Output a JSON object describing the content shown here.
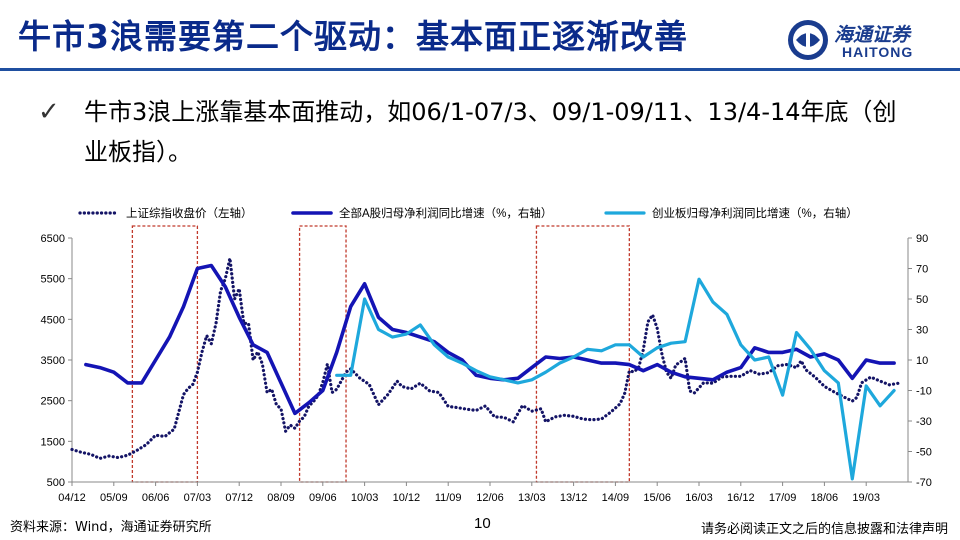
{
  "header": {
    "title": "牛市3浪需要第二个驱动：基本面正逐渐改善",
    "logo_cn": "海通证券",
    "logo_en": "HAITONG"
  },
  "bullet": {
    "icon": "check-icon",
    "text": "牛市3浪上涨靠基本面推动，如06/1-07/3、09/1-09/11、13/4-14年底（创业板指）。"
  },
  "footer": {
    "source": "资料来源：Wind，海通证券研究所",
    "page": "10",
    "disclaimer": "请务必阅读正文之后的信息披露和法律声明"
  },
  "colors": {
    "title": "#0a2a8a",
    "series_dark": "#1414b4",
    "series_light": "#1ea8dc",
    "index_dots": "#141466",
    "highlight_box": "#c0392b"
  },
  "chart_data": {
    "type": "line",
    "x_ticks": [
      "04/12",
      "05/09",
      "06/06",
      "07/03",
      "07/12",
      "08/09",
      "09/06",
      "10/03",
      "10/12",
      "11/09",
      "12/06",
      "13/03",
      "13/12",
      "14/09",
      "15/06",
      "16/03",
      "16/12",
      "17/09",
      "18/06",
      "19/03"
    ],
    "x_range": [
      "2004-12",
      "2019-12"
    ],
    "y_left": {
      "ticks": [
        500,
        1500,
        2500,
        3500,
        4500,
        5500,
        6500
      ],
      "ylim": [
        500,
        6500
      ]
    },
    "y_right": {
      "ticks": [
        -70,
        -50,
        -30,
        -10,
        10,
        30,
        50,
        70,
        90
      ],
      "ylim": [
        -70,
        90
      ]
    },
    "series": [
      {
        "name": "上证综指收盘价（左轴）",
        "axis": "left",
        "style": "dotted",
        "points": [
          [
            "2004-12",
            1300
          ],
          [
            "2005-02",
            1230
          ],
          [
            "2005-04",
            1180
          ],
          [
            "2005-06",
            1080
          ],
          [
            "2005-08",
            1140
          ],
          [
            "2005-10",
            1100
          ],
          [
            "2005-12",
            1160
          ],
          [
            "2006-02",
            1280
          ],
          [
            "2006-04",
            1420
          ],
          [
            "2006-06",
            1650
          ],
          [
            "2006-08",
            1620
          ],
          [
            "2006-10",
            1800
          ],
          [
            "2006-12",
            2650
          ],
          [
            "2007-01",
            2800
          ],
          [
            "2007-02",
            2900
          ],
          [
            "2007-03",
            3200
          ],
          [
            "2007-04",
            3700
          ],
          [
            "2007-05",
            4100
          ],
          [
            "2007-06",
            3900
          ],
          [
            "2007-07",
            4400
          ],
          [
            "2007-08",
            5200
          ],
          [
            "2007-09",
            5500
          ],
          [
            "2007-10",
            6000
          ],
          [
            "2007-11",
            5000
          ],
          [
            "2007-12",
            5250
          ],
          [
            "2008-01",
            4400
          ],
          [
            "2008-02",
            4400
          ],
          [
            "2008-03",
            3500
          ],
          [
            "2008-04",
            3700
          ],
          [
            "2008-05",
            3400
          ],
          [
            "2008-06",
            2700
          ],
          [
            "2008-07",
            2780
          ],
          [
            "2008-08",
            2400
          ],
          [
            "2008-09",
            2300
          ],
          [
            "2008-10",
            1750
          ],
          [
            "2008-11",
            1900
          ],
          [
            "2008-12",
            1820
          ],
          [
            "2009-01",
            2000
          ],
          [
            "2009-02",
            2100
          ],
          [
            "2009-03",
            2370
          ],
          [
            "2009-04",
            2480
          ],
          [
            "2009-05",
            2630
          ],
          [
            "2009-06",
            2950
          ],
          [
            "2009-07",
            3400
          ],
          [
            "2009-08",
            2700
          ],
          [
            "2009-09",
            2780
          ],
          [
            "2009-10",
            2990
          ],
          [
            "2009-11",
            3200
          ],
          [
            "2009-12",
            3280
          ],
          [
            "2010-02",
            3050
          ],
          [
            "2010-04",
            2900
          ],
          [
            "2010-06",
            2400
          ],
          [
            "2010-08",
            2650
          ],
          [
            "2010-10",
            2980
          ],
          [
            "2010-11",
            2850
          ],
          [
            "2011-01",
            2790
          ],
          [
            "2011-03",
            2930
          ],
          [
            "2011-05",
            2740
          ],
          [
            "2011-07",
            2700
          ],
          [
            "2011-09",
            2360
          ],
          [
            "2011-11",
            2330
          ],
          [
            "2012-01",
            2290
          ],
          [
            "2012-03",
            2260
          ],
          [
            "2012-05",
            2370
          ],
          [
            "2012-07",
            2100
          ],
          [
            "2012-09",
            2090
          ],
          [
            "2012-11",
            1980
          ],
          [
            "2013-01",
            2380
          ],
          [
            "2013-03",
            2240
          ],
          [
            "2013-05",
            2300
          ],
          [
            "2013-06",
            1980
          ],
          [
            "2013-08",
            2100
          ],
          [
            "2013-10",
            2140
          ],
          [
            "2013-12",
            2115
          ],
          [
            "2014-02",
            2050
          ],
          [
            "2014-04",
            2030
          ],
          [
            "2014-06",
            2050
          ],
          [
            "2014-08",
            2220
          ],
          [
            "2014-10",
            2420
          ],
          [
            "2014-11",
            2680
          ],
          [
            "2014-12",
            3230
          ],
          [
            "2015-01",
            3210
          ],
          [
            "2015-02",
            3310
          ],
          [
            "2015-03",
            3750
          ],
          [
            "2015-04",
            4440
          ],
          [
            "2015-05",
            4610
          ],
          [
            "2015-06",
            4280
          ],
          [
            "2015-07",
            3660
          ],
          [
            "2015-08",
            3200
          ],
          [
            "2015-09",
            3050
          ],
          [
            "2015-10",
            3380
          ],
          [
            "2015-11",
            3450
          ],
          [
            "2015-12",
            3540
          ],
          [
            "2016-01",
            2740
          ],
          [
            "2016-02",
            2690
          ],
          [
            "2016-04",
            2940
          ],
          [
            "2016-06",
            2930
          ],
          [
            "2016-08",
            3085
          ],
          [
            "2016-10",
            3100
          ],
          [
            "2016-12",
            3100
          ],
          [
            "2017-02",
            3240
          ],
          [
            "2017-04",
            3150
          ],
          [
            "2017-06",
            3190
          ],
          [
            "2017-08",
            3360
          ],
          [
            "2017-10",
            3390
          ],
          [
            "2017-12",
            3310
          ],
          [
            "2018-01",
            3480
          ],
          [
            "2018-02",
            3260
          ],
          [
            "2018-04",
            3080
          ],
          [
            "2018-06",
            2850
          ],
          [
            "2018-08",
            2720
          ],
          [
            "2018-10",
            2600
          ],
          [
            "2018-12",
            2490
          ],
          [
            "2019-01",
            2580
          ],
          [
            "2019-02",
            2940
          ],
          [
            "2019-04",
            3080
          ],
          [
            "2019-06",
            2980
          ],
          [
            "2019-08",
            2890
          ],
          [
            "2019-10",
            2930
          ]
        ]
      },
      {
        "name": "全部A股归母净利润同比增速（%，右轴）",
        "axis": "right",
        "style": "solid-thick",
        "points": [
          [
            "2005-03",
            7
          ],
          [
            "2005-06",
            5
          ],
          [
            "2005-09",
            2
          ],
          [
            "2005-12",
            -5
          ],
          [
            "2006-03",
            -5
          ],
          [
            "2006-06",
            10
          ],
          [
            "2006-09",
            25
          ],
          [
            "2006-12",
            45
          ],
          [
            "2007-03",
            70
          ],
          [
            "2007-06",
            72
          ],
          [
            "2007-09",
            58
          ],
          [
            "2007-12",
            38
          ],
          [
            "2008-03",
            20
          ],
          [
            "2008-06",
            15
          ],
          [
            "2008-09",
            -5
          ],
          [
            "2008-12",
            -25
          ],
          [
            "2009-03",
            -18
          ],
          [
            "2009-06",
            -10
          ],
          [
            "2009-09",
            15
          ],
          [
            "2009-12",
            45
          ],
          [
            "2010-03",
            60
          ],
          [
            "2010-06",
            38
          ],
          [
            "2010-09",
            30
          ],
          [
            "2010-12",
            28
          ],
          [
            "2011-03",
            25
          ],
          [
            "2011-06",
            22
          ],
          [
            "2011-09",
            15
          ],
          [
            "2011-12",
            10
          ],
          [
            "2012-03",
            0
          ],
          [
            "2012-06",
            -2
          ],
          [
            "2012-09",
            -3
          ],
          [
            "2012-12",
            -2
          ],
          [
            "2013-03",
            5
          ],
          [
            "2013-06",
            12
          ],
          [
            "2013-09",
            11
          ],
          [
            "2013-12",
            12
          ],
          [
            "2014-03",
            10
          ],
          [
            "2014-06",
            8
          ],
          [
            "2014-09",
            8
          ],
          [
            "2014-12",
            7
          ],
          [
            "2015-03",
            3
          ],
          [
            "2015-06",
            7
          ],
          [
            "2015-09",
            2
          ],
          [
            "2015-12",
            -1
          ],
          [
            "2016-03",
            -2
          ],
          [
            "2016-06",
            -3
          ],
          [
            "2016-09",
            2
          ],
          [
            "2016-12",
            5
          ],
          [
            "2017-03",
            18
          ],
          [
            "2017-06",
            15
          ],
          [
            "2017-09",
            15
          ],
          [
            "2017-12",
            17
          ],
          [
            "2018-03",
            12
          ],
          [
            "2018-06",
            14
          ],
          [
            "2018-09",
            10
          ],
          [
            "2018-12",
            -2
          ],
          [
            "2019-03",
            10
          ],
          [
            "2019-06",
            8
          ],
          [
            "2019-09",
            8
          ]
        ]
      },
      {
        "name": "创业板归母净利润同比增速（%，右轴）",
        "axis": "right",
        "style": "solid",
        "points": [
          [
            "2009-09",
            0
          ],
          [
            "2009-12",
            0
          ],
          [
            "2010-03",
            50
          ],
          [
            "2010-06",
            30
          ],
          [
            "2010-09",
            25
          ],
          [
            "2010-12",
            27
          ],
          [
            "2011-03",
            33
          ],
          [
            "2011-06",
            20
          ],
          [
            "2011-09",
            12
          ],
          [
            "2011-12",
            8
          ],
          [
            "2012-03",
            3
          ],
          [
            "2012-06",
            -1
          ],
          [
            "2012-09",
            -3
          ],
          [
            "2012-12",
            -5
          ],
          [
            "2013-03",
            -3
          ],
          [
            "2013-06",
            2
          ],
          [
            "2013-09",
            8
          ],
          [
            "2013-12",
            12
          ],
          [
            "2014-03",
            17
          ],
          [
            "2014-06",
            16
          ],
          [
            "2014-09",
            20
          ],
          [
            "2014-12",
            20
          ],
          [
            "2015-03",
            12
          ],
          [
            "2015-06",
            18
          ],
          [
            "2015-09",
            21
          ],
          [
            "2015-12",
            22
          ],
          [
            "2016-03",
            63
          ],
          [
            "2016-06",
            48
          ],
          [
            "2016-09",
            40
          ],
          [
            "2016-12",
            20
          ],
          [
            "2017-03",
            10
          ],
          [
            "2017-06",
            12
          ],
          [
            "2017-09",
            -13
          ],
          [
            "2017-12",
            28
          ],
          [
            "2018-03",
            17
          ],
          [
            "2018-06",
            3
          ],
          [
            "2018-09",
            -5
          ],
          [
            "2018-12",
            -68
          ],
          [
            "2019-03",
            -7
          ],
          [
            "2019-06",
            -20
          ],
          [
            "2019-09",
            -10
          ]
        ]
      }
    ],
    "highlight_periods": [
      [
        "2006-01",
        "2007-03"
      ],
      [
        "2009-01",
        "2009-11"
      ],
      [
        "2013-04",
        "2014-12"
      ]
    ],
    "grid": false,
    "legend_position": "top"
  }
}
